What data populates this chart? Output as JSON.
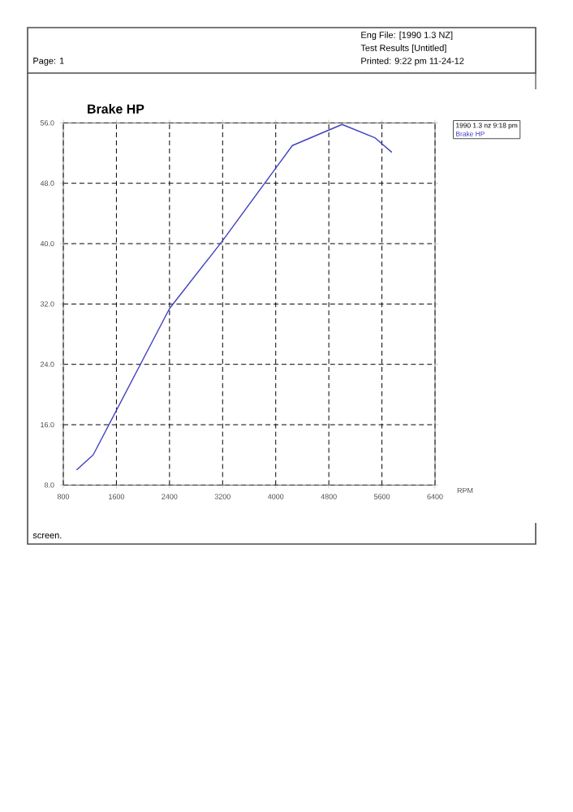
{
  "chart_data": {
    "type": "line",
    "title": "Brake HP",
    "xlabel": "RPM",
    "legend_title": "1990 1.3 nz 9:18 pm",
    "annotations": [
      "Page: 1",
      "Eng File: [1990 1.3 NZ]",
      "Test Results [Untitled]",
      "Printed: 9:22 pm 11-24-12",
      "screen."
    ],
    "x": [
      1000,
      1250,
      2400,
      3200,
      4000,
      4250,
      5000,
      5500,
      5750
    ],
    "series": [
      {
        "name": "Brake HP",
        "color": "#4040c0",
        "values": [
          10.0,
          12.0,
          31.4,
          40.4,
          50.0,
          53.0,
          55.8,
          54.0,
          52.1
        ]
      }
    ],
    "xlim": [
      800,
      6400
    ],
    "xticks": [
      800,
      1600,
      2400,
      3200,
      4000,
      4800,
      5600,
      6400
    ],
    "ylim": [
      8,
      56
    ],
    "yticks": [
      {
        "value": 8,
        "label": "8.0"
      },
      {
        "value": 16,
        "label": "16.0"
      },
      {
        "value": 24,
        "label": "24.0"
      },
      {
        "value": 32,
        "label": "32.0"
      },
      {
        "value": 40,
        "label": "40.0"
      },
      {
        "value": 48,
        "label": "48.0"
      },
      {
        "value": 56,
        "label": "56.0"
      }
    ],
    "grid": true,
    "legend": "top right",
    "marker": "none",
    "line_style": "solid"
  }
}
